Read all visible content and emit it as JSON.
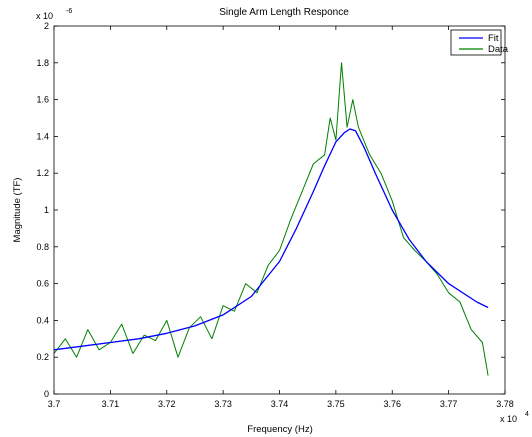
{
  "chart_data": {
    "type": "line",
    "title": "Single Arm Length Responce",
    "xlabel": "Frequency (Hz)",
    "ylabel": "Magnitude (TF)",
    "x_multiplier_label": "x 10",
    "x_multiplier_exponent": "4",
    "y_multiplier_label": "x 10",
    "y_multiplier_exponent": "-6",
    "xlim": [
      3.7,
      3.78
    ],
    "ylim": [
      0,
      2
    ],
    "x_ticks": [
      3.7,
      3.71,
      3.72,
      3.73,
      3.74,
      3.75,
      3.76,
      3.77,
      3.78
    ],
    "x_tick_labels": [
      "3.7",
      "3.71",
      "3.72",
      "3.73",
      "3.74",
      "3.75",
      "3.76",
      "3.77",
      "3.78"
    ],
    "y_ticks": [
      0,
      0.2,
      0.4,
      0.6,
      0.8,
      1,
      1.2,
      1.4,
      1.6,
      1.8,
      2
    ],
    "y_tick_labels": [
      "0",
      "0.2",
      "0.4",
      "0.6",
      "0.8",
      "1",
      "1.2",
      "1.4",
      "1.6",
      "1.8",
      "2"
    ],
    "grid": false,
    "legend_position": "top-right",
    "series": [
      {
        "name": "Fit",
        "color": "#0000ff",
        "x": [
          3.7,
          3.705,
          3.71,
          3.715,
          3.72,
          3.725,
          3.73,
          3.735,
          3.74,
          3.743,
          3.746,
          3.748,
          3.75,
          3.7515,
          3.7525,
          3.7535,
          3.755,
          3.757,
          3.76,
          3.763,
          3.766,
          3.77,
          3.775,
          3.777
        ],
        "values": [
          0.24,
          0.26,
          0.28,
          0.3,
          0.33,
          0.37,
          0.43,
          0.53,
          0.72,
          0.9,
          1.1,
          1.24,
          1.37,
          1.42,
          1.44,
          1.43,
          1.34,
          1.2,
          1.0,
          0.84,
          0.72,
          0.6,
          0.5,
          0.47
        ]
      },
      {
        "name": "Data",
        "color": "#008000",
        "x": [
          3.7,
          3.702,
          3.704,
          3.706,
          3.708,
          3.71,
          3.712,
          3.714,
          3.716,
          3.718,
          3.72,
          3.722,
          3.724,
          3.726,
          3.728,
          3.73,
          3.732,
          3.734,
          3.736,
          3.738,
          3.74,
          3.742,
          3.744,
          3.746,
          3.748,
          3.749,
          3.75,
          3.751,
          3.752,
          3.753,
          3.754,
          3.756,
          3.758,
          3.76,
          3.762,
          3.764,
          3.766,
          3.768,
          3.77,
          3.772,
          3.774,
          3.776,
          3.777
        ],
        "values": [
          0.22,
          0.3,
          0.2,
          0.35,
          0.24,
          0.28,
          0.38,
          0.22,
          0.32,
          0.29,
          0.4,
          0.2,
          0.36,
          0.42,
          0.3,
          0.48,
          0.45,
          0.6,
          0.55,
          0.7,
          0.78,
          0.95,
          1.1,
          1.25,
          1.3,
          1.5,
          1.38,
          1.8,
          1.45,
          1.6,
          1.45,
          1.3,
          1.2,
          1.05,
          0.85,
          0.78,
          0.72,
          0.65,
          0.55,
          0.5,
          0.35,
          0.28,
          0.1
        ]
      }
    ]
  }
}
